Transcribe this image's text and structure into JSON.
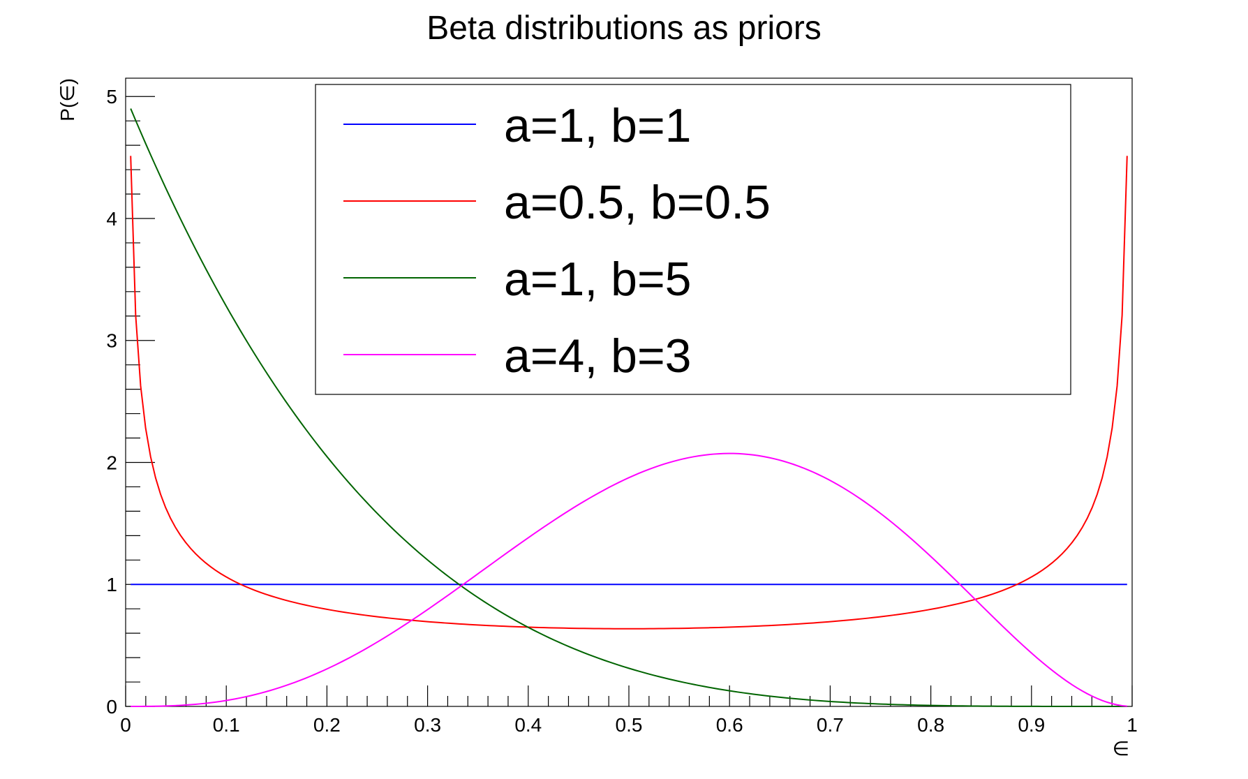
{
  "chart_data": {
    "type": "line",
    "title": "Beta distributions as priors",
    "xlabel": "∈",
    "ylabel": "P(∈)",
    "xlim": [
      0,
      1
    ],
    "ylim": [
      0,
      5.15
    ],
    "x_ticks": [
      "0",
      "0.1",
      "0.2",
      "0.3",
      "0.4",
      "0.5",
      "0.6",
      "0.7",
      "0.8",
      "0.9",
      "1"
    ],
    "y_ticks": [
      "0",
      "1",
      "2",
      "3",
      "4",
      "5"
    ],
    "grid": false,
    "legend_position": "top-center",
    "series": [
      {
        "name": "a=1, b=1",
        "a": 1,
        "b": 1,
        "color": "#0000ff"
      },
      {
        "name": "a=0.5, b=0.5",
        "a": 0.5,
        "b": 0.5,
        "color": "#ff0000"
      },
      {
        "name": "a=1, b=5",
        "a": 1,
        "b": 5,
        "color": "#006400"
      },
      {
        "name": "a=4, b=3",
        "a": 4,
        "b": 3,
        "color": "#ff00ff"
      }
    ]
  }
}
